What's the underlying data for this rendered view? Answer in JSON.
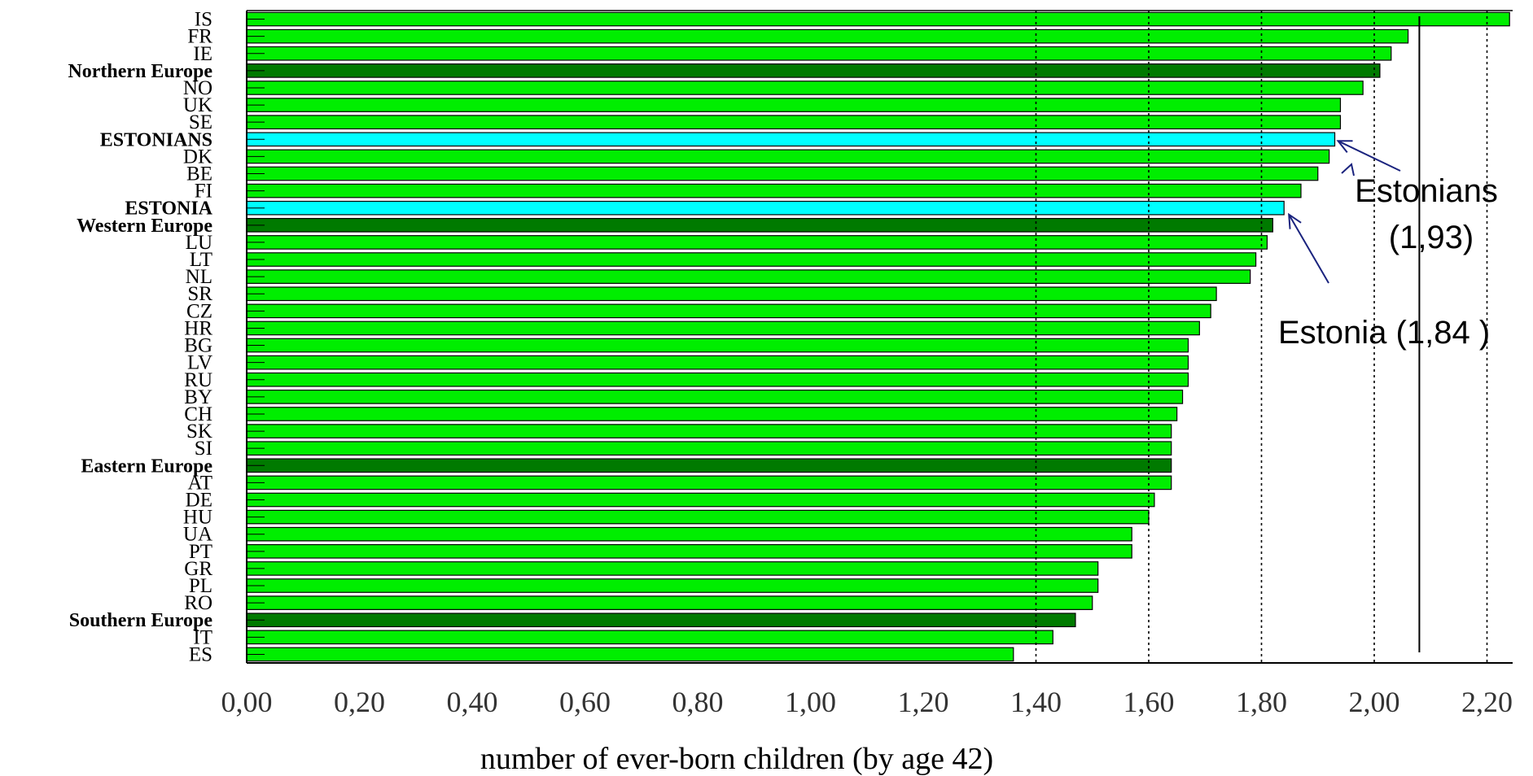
{
  "chart_data": {
    "type": "bar",
    "orientation": "horizontal",
    "title": "",
    "xlabel": "number of ever-born children (by age 42)",
    "ylabel": "",
    "xlim": [
      0.0,
      2.25
    ],
    "x_ticks": [
      "0,00",
      "0,20",
      "0,40",
      "0,60",
      "0,80",
      "1,00",
      "1,20",
      "1,40",
      "1,60",
      "1,80",
      "2,00",
      "2,20"
    ],
    "x_tick_values": [
      0,
      0.2,
      0.4,
      0.6,
      0.8,
      1.0,
      1.2,
      1.4,
      1.6,
      1.8,
      2.0,
      2.2
    ],
    "dotted_gridlines": [
      1.4,
      1.6,
      1.8,
      2.0,
      2.2
    ],
    "reference_line": 2.08,
    "colors": {
      "country": "#00ee00",
      "region": "#007a00",
      "estonia": "#00ffff",
      "arrow": "#1a237e"
    },
    "bars": [
      {
        "label": "IS",
        "value": 2.24,
        "kind": "country"
      },
      {
        "label": "FR",
        "value": 2.06,
        "kind": "country"
      },
      {
        "label": "IE",
        "value": 2.03,
        "kind": "country"
      },
      {
        "label": "Northern Europe",
        "value": 2.01,
        "kind": "region"
      },
      {
        "label": "NO",
        "value": 1.98,
        "kind": "country"
      },
      {
        "label": "UK",
        "value": 1.94,
        "kind": "country"
      },
      {
        "label": "SE",
        "value": 1.94,
        "kind": "country"
      },
      {
        "label": "ESTONIANS",
        "value": 1.93,
        "kind": "estonia"
      },
      {
        "label": "DK",
        "value": 1.92,
        "kind": "country"
      },
      {
        "label": "BE",
        "value": 1.9,
        "kind": "country"
      },
      {
        "label": "FI",
        "value": 1.87,
        "kind": "country"
      },
      {
        "label": "ESTONIA",
        "value": 1.84,
        "kind": "estonia"
      },
      {
        "label": "Western Europe",
        "value": 1.82,
        "kind": "region"
      },
      {
        "label": "LU",
        "value": 1.81,
        "kind": "country"
      },
      {
        "label": "LT",
        "value": 1.79,
        "kind": "country"
      },
      {
        "label": "NL",
        "value": 1.78,
        "kind": "country"
      },
      {
        "label": "SR",
        "value": 1.72,
        "kind": "country"
      },
      {
        "label": "CZ",
        "value": 1.71,
        "kind": "country"
      },
      {
        "label": "HR",
        "value": 1.69,
        "kind": "country"
      },
      {
        "label": "BG",
        "value": 1.67,
        "kind": "country"
      },
      {
        "label": "LV",
        "value": 1.67,
        "kind": "country"
      },
      {
        "label": "RU",
        "value": 1.67,
        "kind": "country"
      },
      {
        "label": "BY",
        "value": 1.66,
        "kind": "country"
      },
      {
        "label": "CH",
        "value": 1.65,
        "kind": "country"
      },
      {
        "label": "SK",
        "value": 1.64,
        "kind": "country"
      },
      {
        "label": "SI",
        "value": 1.64,
        "kind": "country"
      },
      {
        "label": "Eastern Europe",
        "value": 1.64,
        "kind": "region"
      },
      {
        "label": "AT",
        "value": 1.64,
        "kind": "country"
      },
      {
        "label": "DE",
        "value": 1.61,
        "kind": "country"
      },
      {
        "label": "HU",
        "value": 1.6,
        "kind": "country"
      },
      {
        "label": "UA",
        "value": 1.57,
        "kind": "country"
      },
      {
        "label": "PT",
        "value": 1.57,
        "kind": "country"
      },
      {
        "label": "GR",
        "value": 1.51,
        "kind": "country"
      },
      {
        "label": "PL",
        "value": 1.51,
        "kind": "country"
      },
      {
        "label": "RO",
        "value": 1.5,
        "kind": "country"
      },
      {
        "label": "Southern Europe",
        "value": 1.47,
        "kind": "region"
      },
      {
        "label": "IT",
        "value": 1.43,
        "kind": "country"
      },
      {
        "label": "ES",
        "value": 1.36,
        "kind": "country"
      }
    ],
    "annotations": [
      {
        "lines": [
          "Estonians",
          "(1,93)"
        ],
        "points_to": "ESTONIANS"
      },
      {
        "lines": [
          "Estonia (1,84 )"
        ],
        "points_to": "ESTONIA"
      }
    ]
  }
}
